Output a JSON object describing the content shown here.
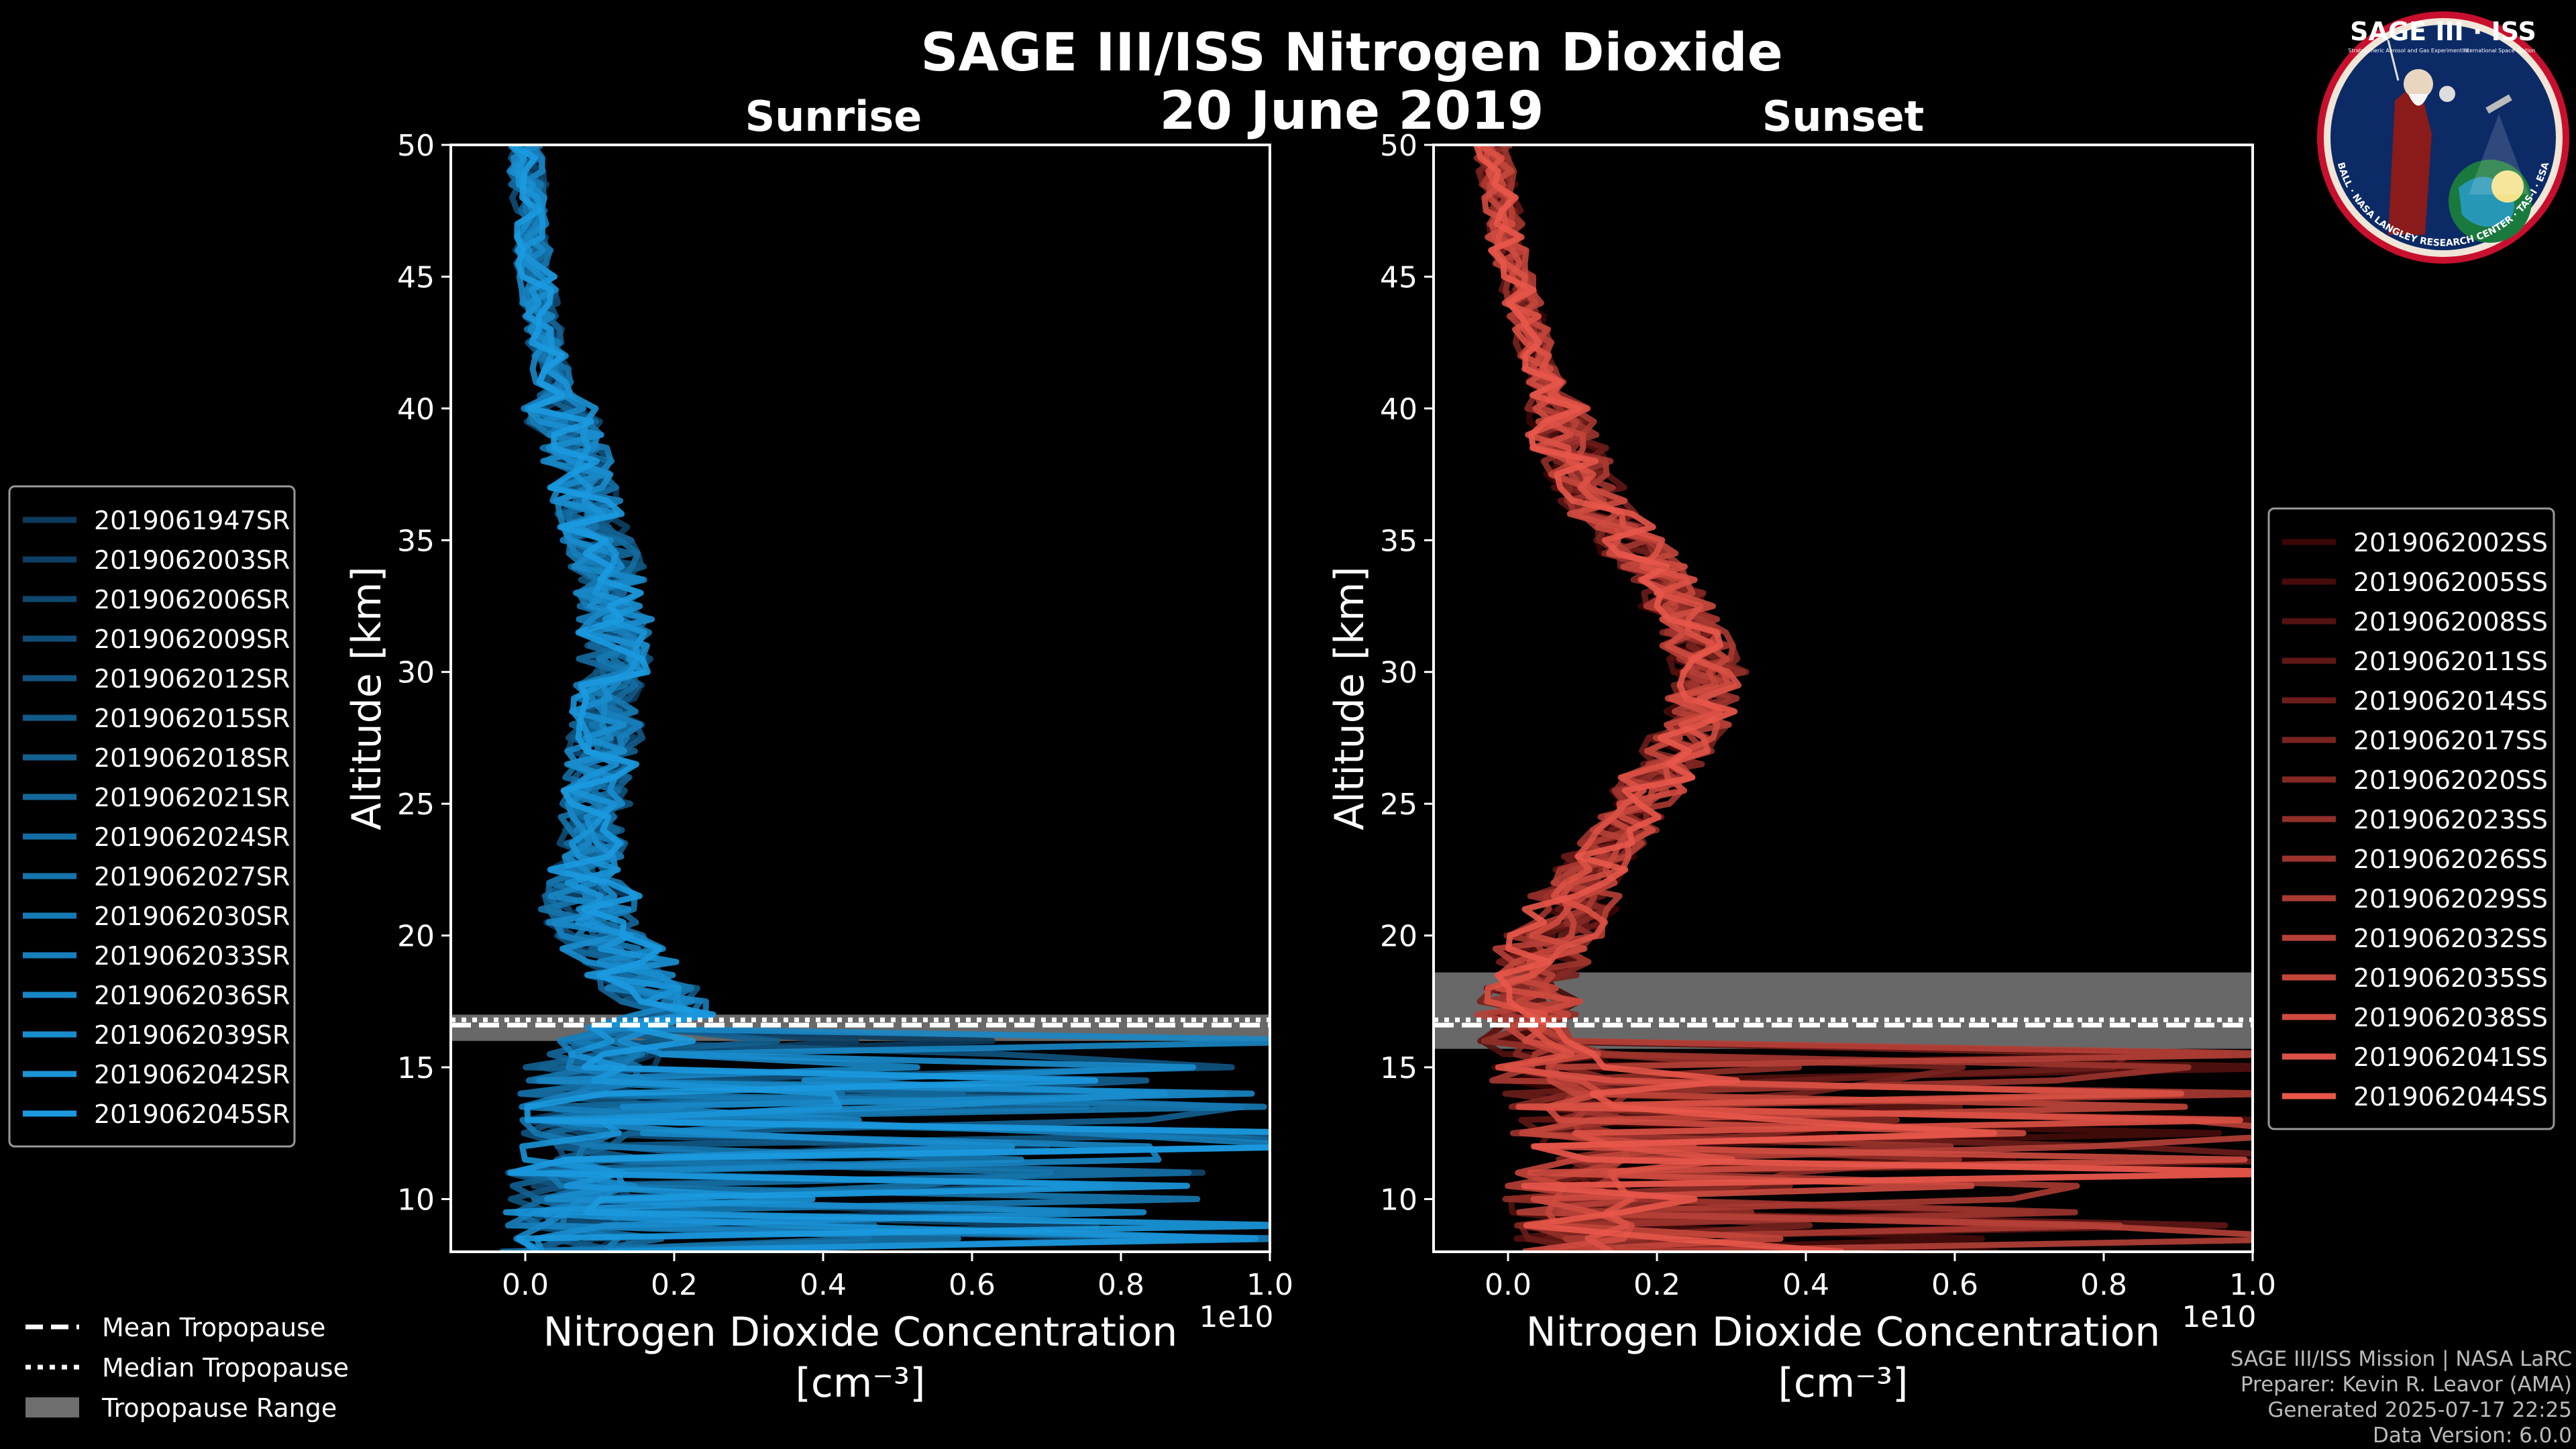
{
  "title": "SAGE III/ISS Nitrogen Dioxide",
  "date": "20 June 2019",
  "logo": {
    "title": "SAGE III · ISS",
    "subtitle_left": "Stratospheric Aerosol and Gas Experiment III",
    "subtitle_right": "International Space Station",
    "ring_text": "BALL · NASA LANGLEY RESEARCH CENTER · TAS-I · ESA"
  },
  "credits": [
    "SAGE III/ISS Mission | NASA LaRC",
    "Preparer: Kevin R. Leavor (AMA)",
    "Generated 2025-07-17 22:25",
    "Data Version: 6.0.0"
  ],
  "tropopause_legend": [
    {
      "label": "Mean Tropopause",
      "style": "dashed"
    },
    {
      "label": "Median Tropopause",
      "style": "dotted"
    },
    {
      "label": "Tropopause Range",
      "style": "patch"
    }
  ],
  "chart_data": [
    {
      "type": "line",
      "title": "Sunrise",
      "xlabel": "Nitrogen Dioxide Concentration",
      "xunit": "[cm⁻³]",
      "ylabel": "Altitude [km]",
      "x_offset_text": "1e10",
      "xlim": [
        -0.1,
        1.0
      ],
      "ylim": [
        8,
        50
      ],
      "xticks": [
        0.0,
        0.2,
        0.4,
        0.6,
        0.8,
        1.0
      ],
      "xtick_labels": [
        "0.0",
        "0.2",
        "0.4",
        "0.6",
        "0.8",
        "1.0"
      ],
      "yticks": [
        10,
        15,
        20,
        25,
        30,
        35,
        40,
        45,
        50
      ],
      "ytick_labels": [
        "10",
        "15",
        "20",
        "25",
        "30",
        "35",
        "40",
        "45",
        "50"
      ],
      "color_dark": "#0d3a5c",
      "color_light": "#1b9ae0",
      "tropopause": {
        "mean": 16.6,
        "median": 16.8,
        "range": [
          16.0,
          17.0
        ]
      },
      "legend_position": "outside-left",
      "series_names": [
        "2019061947SR",
        "2019062003SR",
        "2019062006SR",
        "2019062009SR",
        "2019062012SR",
        "2019062015SR",
        "2019062018SR",
        "2019062021SR",
        "2019062024SR",
        "2019062027SR",
        "2019062030SR",
        "2019062033SR",
        "2019062036SR",
        "2019062039SR",
        "2019062042SR",
        "2019062045SR"
      ],
      "profile": [
        [
          50,
          0.0
        ],
        [
          48,
          0.005
        ],
        [
          46,
          0.01
        ],
        [
          44,
          0.02
        ],
        [
          42,
          0.03
        ],
        [
          40,
          0.045
        ],
        [
          38,
          0.07
        ],
        [
          36,
          0.09
        ],
        [
          34,
          0.11
        ],
        [
          32,
          0.12
        ],
        [
          30,
          0.12
        ],
        [
          28,
          0.11
        ],
        [
          26,
          0.1
        ],
        [
          24,
          0.09
        ],
        [
          22,
          0.08
        ],
        [
          20,
          0.1
        ],
        [
          18,
          0.17
        ],
        [
          17,
          0.2
        ],
        [
          16,
          0.1
        ],
        [
          15,
          0.05
        ],
        [
          14,
          0.04
        ],
        [
          12,
          0.03
        ],
        [
          10,
          0.03
        ],
        [
          8,
          0.02
        ]
      ]
    },
    {
      "type": "line",
      "title": "Sunset",
      "xlabel": "Nitrogen Dioxide Concentration",
      "xunit": "[cm⁻³]",
      "ylabel": "Altitude [km]",
      "x_offset_text": "1e10",
      "xlim": [
        -0.1,
        1.0
      ],
      "ylim": [
        8,
        50
      ],
      "xticks": [
        0.0,
        0.2,
        0.4,
        0.6,
        0.8,
        1.0
      ],
      "xtick_labels": [
        "0.0",
        "0.2",
        "0.4",
        "0.6",
        "0.8",
        "1.0"
      ],
      "yticks": [
        10,
        15,
        20,
        25,
        30,
        35,
        40,
        45,
        50
      ],
      "ytick_labels": [
        "10",
        "15",
        "20",
        "25",
        "30",
        "35",
        "40",
        "45",
        "50"
      ],
      "color_dark": "#3a0606",
      "color_light": "#e8574a",
      "tropopause": {
        "mean": 16.6,
        "median": 16.8,
        "range": [
          15.7,
          18.6
        ]
      },
      "legend_position": "outside-right",
      "series_names": [
        "2019062002SS",
        "2019062005SS",
        "2019062008SS",
        "2019062011SS",
        "2019062014SS",
        "2019062017SS",
        "2019062020SS",
        "2019062023SS",
        "2019062026SS",
        "2019062029SS",
        "2019062032SS",
        "2019062035SS",
        "2019062038SS",
        "2019062041SS",
        "2019062044SS"
      ],
      "profile": [
        [
          50,
          -0.02
        ],
        [
          48,
          -0.01
        ],
        [
          46,
          0.0
        ],
        [
          44,
          0.02
        ],
        [
          42,
          0.04
        ],
        [
          40,
          0.06
        ],
        [
          38,
          0.09
        ],
        [
          36,
          0.13
        ],
        [
          34,
          0.19
        ],
        [
          32,
          0.24
        ],
        [
          30,
          0.27
        ],
        [
          28,
          0.25
        ],
        [
          26,
          0.2
        ],
        [
          24,
          0.15
        ],
        [
          22,
          0.1
        ],
        [
          20,
          0.06
        ],
        [
          18,
          0.03
        ],
        [
          16,
          0.02
        ],
        [
          15,
          0.02
        ],
        [
          14,
          0.04
        ],
        [
          12,
          0.06
        ],
        [
          10,
          0.05
        ],
        [
          8,
          0.04
        ]
      ]
    }
  ]
}
